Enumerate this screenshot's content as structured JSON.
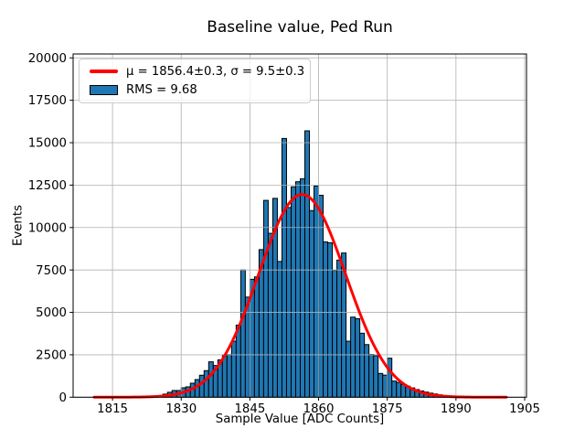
{
  "chart_data": {
    "type": "bar",
    "subtype": "histogram-with-gaussian-fit",
    "title": "Baseline value, Ped Run",
    "xlabel": "Sample Value [ADC Counts]",
    "ylabel": "Events",
    "xlim": [
      1806.4,
      1905.4
    ],
    "ylim": [
      0,
      20230
    ],
    "xticks": [
      1815,
      1830,
      1845,
      1860,
      1875,
      1890,
      1905
    ],
    "yticks": [
      0,
      2500,
      5000,
      7500,
      10000,
      12500,
      15000,
      17500,
      20000
    ],
    "grid": true,
    "grid_above_bars": true,
    "bins": {
      "start": 1826,
      "width": 1,
      "counts": [
        180,
        290,
        395,
        395,
        555,
        610,
        825,
        1040,
        1295,
        1565,
        2085,
        1870,
        2200,
        2500,
        2510,
        3300,
        4250,
        7500,
        5900,
        6950,
        7090,
        8700,
        11600,
        9660,
        11720,
        8000,
        15250,
        11180,
        12400,
        12700,
        12870,
        15700,
        11000,
        12450,
        11900,
        9150,
        9100,
        7480,
        8080,
        8500,
        3300,
        4720,
        4630,
        3770,
        3100,
        2520,
        2450,
        1400,
        1300,
        2300,
        950,
        870,
        750,
        650,
        550,
        450,
        370,
        300,
        240,
        190,
        140,
        100,
        75
      ]
    },
    "fit": {
      "type": "gaussian",
      "mu": 1856.4,
      "sigma": 9.5,
      "amplitude": 11950,
      "x_range": [
        1811,
        1901
      ]
    },
    "legend": {
      "position": "upper left",
      "entries": [
        {
          "label": "μ = 1856.4±0.3, σ = 9.5±0.3",
          "marker": "line",
          "color": "#ff0000"
        },
        {
          "label": "RMS = 9.68",
          "marker": "patch",
          "color": "#1f77b4"
        }
      ]
    },
    "colors": {
      "bar_fill": "#1f77b4",
      "bar_edge": "#000000",
      "fit_line": "#ff0000",
      "grid": "#b0b0b0",
      "spine": "#000000",
      "background": "#ffffff"
    }
  }
}
